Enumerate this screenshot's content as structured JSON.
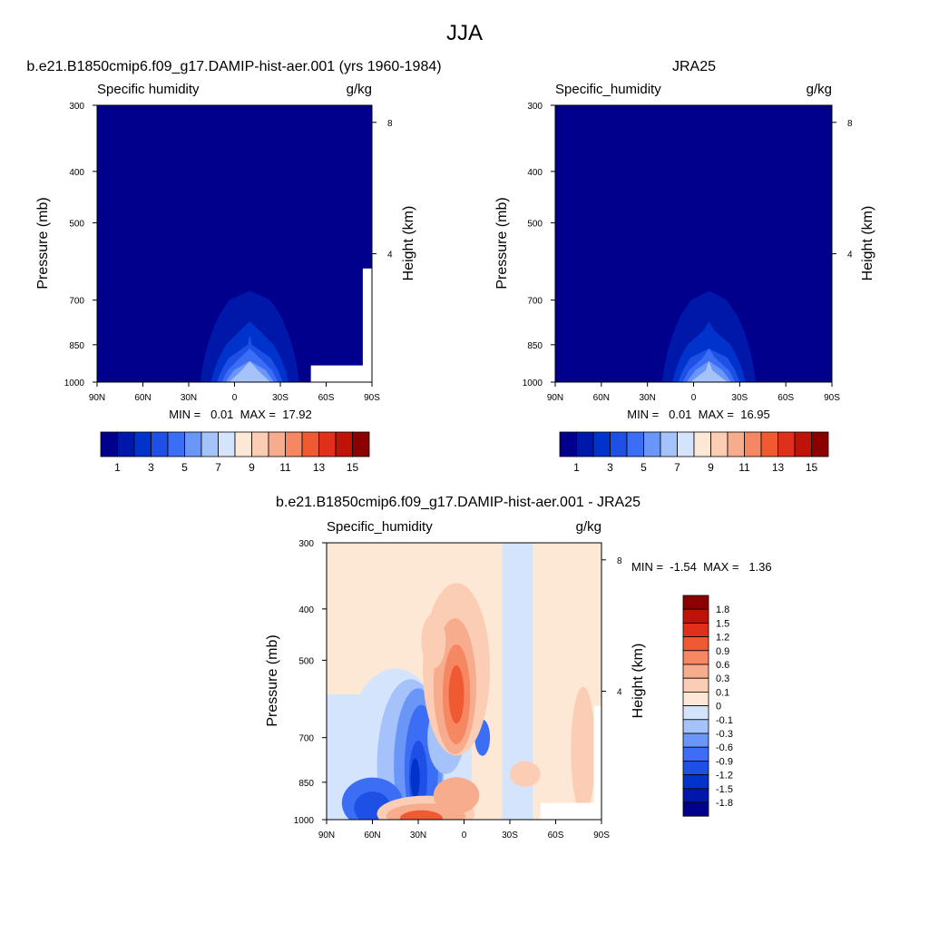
{
  "page": {
    "title": "JJA"
  },
  "colors": {
    "humidity_levels": [
      "#00008c",
      "#0018aa",
      "#0033cc",
      "#1e50e6",
      "#3c6ef5",
      "#6a96f8",
      "#a5c3fa",
      "#d4e4fd",
      "#fde8d6",
      "#fbcdb4",
      "#f8ac8e",
      "#f58762",
      "#f05a32",
      "#e0301b",
      "#c01308",
      "#8b0000"
    ],
    "diff_levels": [
      "#00008c",
      "#0018aa",
      "#0033cc",
      "#1e50e6",
      "#3c6ef5",
      "#6a96f8",
      "#a5c3fa",
      "#d4e4fd",
      "#fde8d6",
      "#fbcdb4",
      "#f8ac8e",
      "#f58762",
      "#f05a32",
      "#e0301b",
      "#c01308",
      "#8b0000"
    ]
  },
  "chart_data": [
    {
      "id": "model",
      "type": "heatmap",
      "title": "b.e21.B1850cmip6.f09_g17.DAMIP-hist-aer.001 (yrs 1960-1984)",
      "left_label": "Specific humidity",
      "units": "g/kg",
      "ylabel": "Pressure (mb)",
      "ylabel_right": "Height (km)",
      "x_ticks": [
        "90N",
        "60N",
        "30N",
        "0",
        "30S",
        "60S",
        "90S"
      ],
      "x_tick_lats": [
        90,
        60,
        30,
        0,
        -30,
        -60,
        -90
      ],
      "y_ticks": [
        "300",
        "400",
        "500",
        "700",
        "850",
        "1000"
      ],
      "y_tick_values": [
        300,
        400,
        500,
        700,
        850,
        1000
      ],
      "right_ticks": [
        "8",
        "4"
      ],
      "right_tick_values": [
        8,
        4
      ],
      "ylim": [
        1000,
        300
      ],
      "xlim": [
        90,
        -90
      ],
      "stats": "MIN =   0.01  MAX =  17.92",
      "min": 0.01,
      "max": 17.92,
      "peak_lat": -10,
      "peak_value": 17.92,
      "colorbar_labels": [
        "1",
        "3",
        "5",
        "7",
        "9",
        "11",
        "13",
        "15"
      ],
      "colorbar_levels": [
        1,
        3,
        5,
        7,
        9,
        11,
        13,
        15
      ]
    },
    {
      "id": "obs",
      "type": "heatmap",
      "title": "JRA25",
      "left_label": "Specific_humidity",
      "units": "g/kg",
      "ylabel": "Pressure (mb)",
      "ylabel_right": "Height (km)",
      "x_ticks": [
        "90N",
        "60N",
        "30N",
        "0",
        "30S",
        "60S",
        "90S"
      ],
      "x_tick_lats": [
        90,
        60,
        30,
        0,
        -30,
        -60,
        -90
      ],
      "y_ticks": [
        "300",
        "400",
        "500",
        "700",
        "850",
        "1000"
      ],
      "y_tick_values": [
        300,
        400,
        500,
        700,
        850,
        1000
      ],
      "right_ticks": [
        "8",
        "4"
      ],
      "right_tick_values": [
        8,
        4
      ],
      "ylim": [
        1000,
        300
      ],
      "xlim": [
        90,
        -90
      ],
      "stats": "MIN =   0.01  MAX =  16.95",
      "min": 0.01,
      "max": 16.95,
      "peak_lat": -10,
      "peak_value": 16.95,
      "colorbar_labels": [
        "1",
        "3",
        "5",
        "7",
        "9",
        "11",
        "13",
        "15"
      ],
      "colorbar_levels": [
        1,
        3,
        5,
        7,
        9,
        11,
        13,
        15
      ]
    },
    {
      "id": "diff",
      "type": "heatmap",
      "title": "b.e21.B1850cmip6.f09_g17.DAMIP-hist-aer.001 - JRA25",
      "left_label": "Specific_humidity",
      "units": "g/kg",
      "ylabel": "Pressure (mb)",
      "ylabel_right": "Height (km)",
      "x_ticks": [
        "90N",
        "60N",
        "30N",
        "0",
        "30S",
        "60S",
        "90S"
      ],
      "x_tick_lats": [
        90,
        60,
        30,
        0,
        -30,
        -60,
        -90
      ],
      "y_ticks": [
        "300",
        "400",
        "500",
        "700",
        "850",
        "1000"
      ],
      "y_tick_values": [
        300,
        400,
        500,
        700,
        850,
        1000
      ],
      "right_ticks": [
        "8",
        "4"
      ],
      "right_tick_values": [
        8,
        4
      ],
      "ylim": [
        1000,
        300
      ],
      "xlim": [
        90,
        -90
      ],
      "stats": "MIN =  -1.54  MAX =   1.36",
      "min": -1.54,
      "max": 1.36,
      "colorbar_labels": [
        "1.8",
        "1.5",
        "1.2",
        "0.9",
        "0.6",
        "0.3",
        "0.1",
        "0",
        "-0.1",
        "-0.3",
        "-0.6",
        "-0.9",
        "-1.2",
        "-1.5",
        "-1.8"
      ],
      "colorbar_levels": [
        1.8,
        1.5,
        1.2,
        0.9,
        0.6,
        0.3,
        0.1,
        0,
        -0.1,
        -0.3,
        -0.6,
        -0.9,
        -1.2,
        -1.5,
        -1.8
      ]
    }
  ]
}
